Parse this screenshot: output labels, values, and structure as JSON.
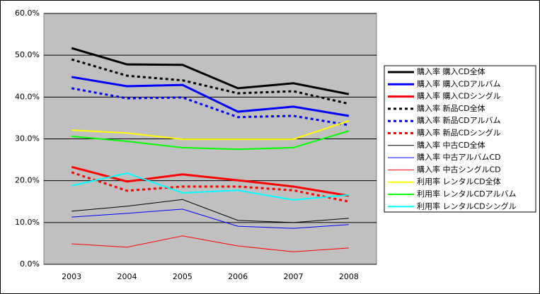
{
  "chart_data": {
    "type": "line",
    "categories": [
      "2003",
      "2004",
      "2005",
      "2006",
      "2007",
      "2008"
    ],
    "ylim": [
      0,
      60
    ],
    "yticks": [
      {
        "value": 0,
        "label": "0.0%"
      },
      {
        "value": 10,
        "label": "10.0%"
      },
      {
        "value": 20,
        "label": "20.0%"
      },
      {
        "value": 30,
        "label": "30.0%"
      },
      {
        "value": 40,
        "label": "40.0%"
      },
      {
        "value": 50,
        "label": "50.0%"
      },
      {
        "value": 60,
        "label": "60.0%"
      }
    ],
    "grid": true,
    "legend": "right",
    "series": [
      {
        "name": "購入率 購入CD全体",
        "color": "#000000",
        "line_width": 3,
        "dashed": false,
        "values": [
          51.7,
          47.8,
          47.7,
          42.1,
          43.3,
          40.7
        ]
      },
      {
        "name": "購入率 購入CDアルバム",
        "color": "#0000ff",
        "line_width": 3,
        "dashed": false,
        "values": [
          44.8,
          42.6,
          42.9,
          36.5,
          37.7,
          35.5
        ]
      },
      {
        "name": "購入率 購入CDシングル",
        "color": "#ff0000",
        "line_width": 3,
        "dashed": false,
        "values": [
          23.3,
          19.8,
          21.5,
          20.1,
          18.6,
          16.4
        ]
      },
      {
        "name": "購入率 新品CD全体",
        "color": "#000000",
        "line_width": 3,
        "dashed": true,
        "values": [
          49.0,
          45.1,
          44.0,
          40.9,
          41.4,
          38.4
        ]
      },
      {
        "name": "購入率 新品CDアルバム",
        "color": "#0000ff",
        "line_width": 3,
        "dashed": true,
        "values": [
          42.1,
          39.7,
          39.9,
          35.2,
          35.5,
          33.3
        ]
      },
      {
        "name": "購入率 新品CDシングル",
        "color": "#ff0000",
        "line_width": 3,
        "dashed": true,
        "values": [
          22.0,
          17.6,
          18.6,
          18.6,
          17.7,
          15.0
        ]
      },
      {
        "name": "購入率 中古CD全体",
        "color": "#000000",
        "line_width": 1,
        "dashed": false,
        "values": [
          12.7,
          13.9,
          15.5,
          10.5,
          10.0,
          11.0
        ]
      },
      {
        "name": "購入率 中古アルバムCD",
        "color": "#0000ff",
        "line_width": 1,
        "dashed": false,
        "values": [
          11.3,
          12.2,
          13.2,
          9.1,
          8.6,
          9.5
        ]
      },
      {
        "name": "購入率 中古シングルCD",
        "color": "#ff0000",
        "line_width": 1,
        "dashed": false,
        "values": [
          4.9,
          4.1,
          6.8,
          4.4,
          3.0,
          3.9
        ]
      },
      {
        "name": "利用率 レンタルCD全体",
        "color": "#ffff00",
        "line_width": 2,
        "dashed": false,
        "values": [
          32.1,
          31.4,
          29.9,
          29.9,
          29.9,
          34.3
        ]
      },
      {
        "name": "利用率 レンタルCDアルバム",
        "color": "#00ff00",
        "line_width": 2,
        "dashed": false,
        "values": [
          30.6,
          29.4,
          27.9,
          27.5,
          27.9,
          31.9
        ]
      },
      {
        "name": "利用率 レンタルCDシングル",
        "color": "#00ffff",
        "line_width": 2,
        "dashed": false,
        "values": [
          18.8,
          21.8,
          17.1,
          17.7,
          15.4,
          16.6
        ]
      }
    ]
  }
}
